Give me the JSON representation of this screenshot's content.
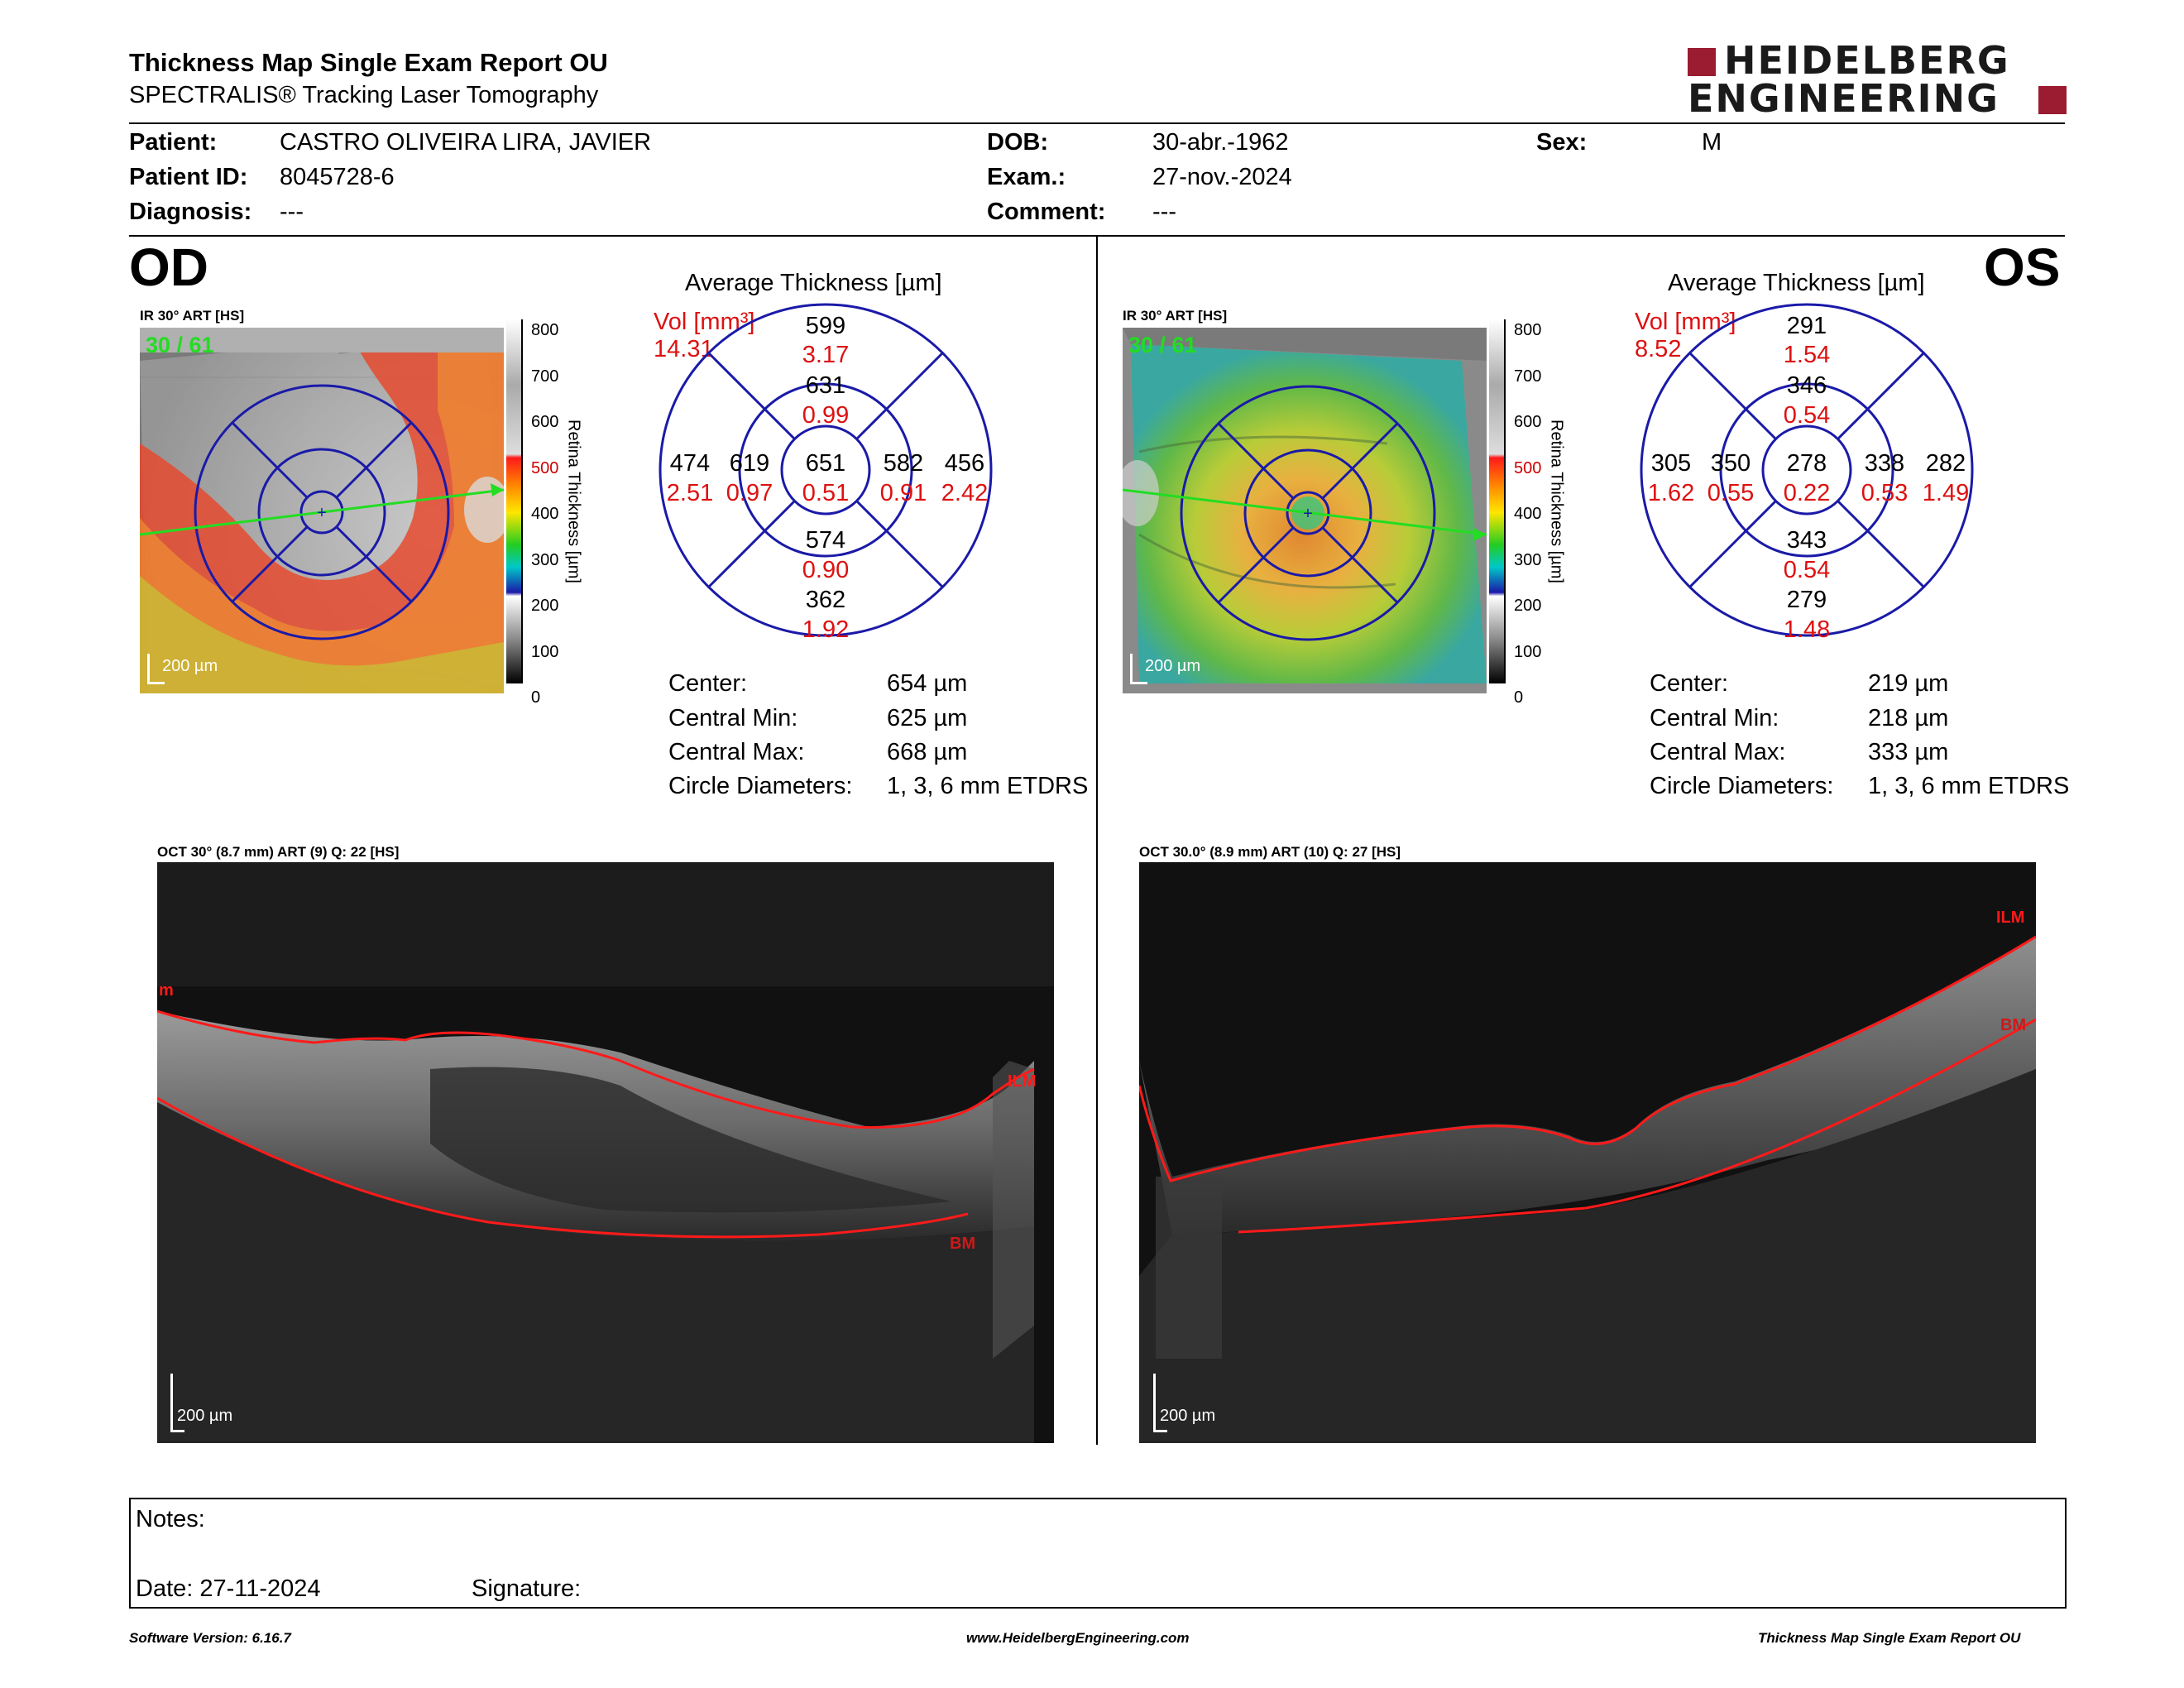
{
  "header": {
    "title": "Thickness Map Single Exam Report OU",
    "subtitle": "SPECTRALIS® Tracking Laser Tomography",
    "logo_line1": "HEIDELBERG",
    "logo_line2": "ENGINEERING"
  },
  "patient": {
    "patient_label": "Patient:",
    "patient_value": "CASTRO OLIVEIRA LIRA, JAVIER",
    "id_label": "Patient ID:",
    "id_value": "8045728-6",
    "diagnosis_label": "Diagnosis:",
    "diagnosis_value": "---",
    "dob_label": "DOB:",
    "dob_value": "30-abr.-1962",
    "exam_label": "Exam.:",
    "exam_value": "27-nov.-2024",
    "comment_label": "Comment:",
    "comment_value": "---",
    "sex_label": "Sex:",
    "sex_value": "M"
  },
  "colorbar": {
    "ticks": [
      "800",
      "700",
      "600",
      "500",
      "400",
      "300",
      "200",
      "100",
      "0"
    ],
    "label": "Retina Thickness [µm]",
    "tick_colors": [
      "#000000",
      "#000000",
      "#000000",
      "#cc0000",
      "#000000",
      "#000000",
      "#000000",
      "#000000",
      "#000000"
    ]
  },
  "od": {
    "eye_label": "OD",
    "ir_label": "IR 30° ART [HS]",
    "frame_count": "30 / 61",
    "scale": "200 µm",
    "avg_title": "Average Thickness [µm]",
    "vol_label": "Vol [mm³]",
    "vol_value": "14.31",
    "grid": {
      "outer_sup": "599",
      "outer_sup_vol": "3.17",
      "inner_sup": "631",
      "inner_sup_vol": "0.99",
      "outer_temp": "474",
      "outer_temp_vol": "2.51",
      "inner_temp": "619",
      "inner_temp_vol": "0.97",
      "center": "651",
      "center_vol": "0.51",
      "inner_nasal": "582",
      "inner_nasal_vol": "0.91",
      "outer_nasal": "456",
      "outer_nasal_vol": "2.42",
      "inner_inf": "574",
      "inner_inf_vol": "0.90",
      "outer_inf": "362",
      "outer_inf_vol": "1.92"
    },
    "stats": {
      "center_label": "Center:",
      "center_value": "654 µm",
      "min_label": "Central Min:",
      "min_value": "625 µm",
      "max_label": "Central Max:",
      "max_value": "668 µm",
      "diam_label": "Circle Diameters:",
      "diam_value": "1, 3, 6 mm ETDRS"
    },
    "oct_label": "OCT 30° (8.7 mm) ART (9) Q: 22 [HS]",
    "oct_scale": "200 µm",
    "ilm_left": "m",
    "ilm_right": "ILM",
    "bm": "BM"
  },
  "os": {
    "eye_label": "OS",
    "ir_label": "IR 30° ART [HS]",
    "frame_count": "30 / 61",
    "scale": "200 µm",
    "avg_title": "Average Thickness [µm]",
    "vol_label": "Vol [mm³]",
    "vol_value": "8.52",
    "grid": {
      "outer_sup": "291",
      "outer_sup_vol": "1.54",
      "inner_sup": "346",
      "inner_sup_vol": "0.54",
      "outer_temp": "305",
      "outer_temp_vol": "1.62",
      "inner_temp": "350",
      "inner_temp_vol": "0.55",
      "center": "278",
      "center_vol": "0.22",
      "inner_nasal": "338",
      "inner_nasal_vol": "0.53",
      "outer_nasal": "282",
      "outer_nasal_vol": "1.49",
      "inner_inf": "343",
      "inner_inf_vol": "0.54",
      "outer_inf": "279",
      "outer_inf_vol": "1.48"
    },
    "stats": {
      "center_label": "Center:",
      "center_value": "219 µm",
      "min_label": "Central Min:",
      "min_value": "218 µm",
      "max_label": "Central Max:",
      "max_value": "333 µm",
      "diam_label": "Circle Diameters:",
      "diam_value": "1, 3, 6 mm ETDRS"
    },
    "oct_label": "OCT 30.0° (8.9 mm) ART (10) Q: 27 [HS]",
    "oct_scale": "200 µm",
    "ilm": "ILM",
    "bm": "BM"
  },
  "notes": {
    "notes_label": "Notes:",
    "date_label": "Date: 27-11-2024",
    "signature_label": "Signature:"
  },
  "footer": {
    "software": "Software Version: 6.16.7",
    "website": "www.HeidelbergEngineering.com",
    "report_name": "Thickness Map Single Exam Report OU"
  },
  "colors": {
    "brand_red": "#9b1b30",
    "grid_blue": "#1a1aa8",
    "volume_red": "#dd1111",
    "scan_green": "#22dd22",
    "boundary_red": "#ff1a1a"
  }
}
